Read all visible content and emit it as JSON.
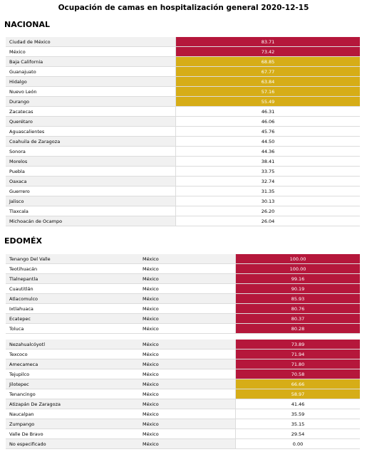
{
  "title": "Ocupación de camas en hospitalización general 2020-12-15",
  "nacional": {
    "heading": "NACIONAL",
    "rows": [
      {
        "name": "Ciudad de México",
        "value": "83.71",
        "color": "#b5173b"
      },
      {
        "name": "México",
        "value": "73.42",
        "color": "#b5173b"
      },
      {
        "name": "Baja California",
        "value": "68.85",
        "color": "#d6ad17"
      },
      {
        "name": "Guanajuato",
        "value": "67.77",
        "color": "#d6ad17"
      },
      {
        "name": "Hidalgo",
        "value": "63.84",
        "color": "#d6ad17"
      },
      {
        "name": "Nuevo León",
        "value": "57.16",
        "color": "#d6ad17"
      },
      {
        "name": "Durango",
        "value": "55.49",
        "color": "#d6ad17"
      },
      {
        "name": "Zacatecas",
        "value": "46.31"
      },
      {
        "name": "Querétaro",
        "value": "46.06"
      },
      {
        "name": "Aguascalientes",
        "value": "45.76"
      },
      {
        "name": "Coahuila de Zaragoza",
        "value": "44.50"
      },
      {
        "name": "Sonora",
        "value": "44.36"
      },
      {
        "name": "Morelos",
        "value": "38.41"
      },
      {
        "name": "Puebla",
        "value": "33.75"
      },
      {
        "name": "Oaxaca",
        "value": "32.74"
      },
      {
        "name": "Guerrero",
        "value": "31.35"
      },
      {
        "name": "Jalisco",
        "value": "30.13"
      },
      {
        "name": "Tlaxcala",
        "value": "26.20"
      },
      {
        "name": "Michoacán de Ocampo",
        "value": "26.04"
      }
    ]
  },
  "edomex": {
    "heading": "EDOMÉX",
    "tables": [
      [
        {
          "name": "Tenango Del Valle",
          "state": "México",
          "value": "100.00",
          "color": "#b5173b"
        },
        {
          "name": "Teotihuacán",
          "state": "México",
          "value": "100.00",
          "color": "#b5173b"
        },
        {
          "name": "Tlalnepantla",
          "state": "México",
          "value": "99.16",
          "color": "#b5173b"
        },
        {
          "name": "Cuautitlán",
          "state": "México",
          "value": "90.19",
          "color": "#b5173b"
        },
        {
          "name": "Atlacomulco",
          "state": "México",
          "value": "85.93",
          "color": "#b5173b"
        },
        {
          "name": "Ixtlahuaca",
          "state": "México",
          "value": "80.76",
          "color": "#b5173b"
        },
        {
          "name": "Ecatepec",
          "state": "México",
          "value": "80.37",
          "color": "#b5173b"
        },
        {
          "name": "Toluca",
          "state": "México",
          "value": "80.28",
          "color": "#b5173b"
        }
      ],
      [
        {
          "name": "Nezahualcóyotl",
          "state": "México",
          "value": "73.89",
          "color": "#b5173b"
        },
        {
          "name": "Texcoco",
          "state": "México",
          "value": "71.94",
          "color": "#b5173b"
        },
        {
          "name": "Amecameca",
          "state": "México",
          "value": "71.80",
          "color": "#b5173b"
        },
        {
          "name": "Tejupilco",
          "state": "México",
          "value": "70.58",
          "color": "#b5173b"
        },
        {
          "name": "Jilotepec",
          "state": "México",
          "value": "66.66",
          "color": "#d6ad17"
        },
        {
          "name": "Tenancingo",
          "state": "México",
          "value": "58.97",
          "color": "#d6ad17"
        },
        {
          "name": "Atizapán De Zaragoza",
          "state": "México",
          "value": "41.46"
        },
        {
          "name": "Naucalpan",
          "state": "México",
          "value": "35.59"
        },
        {
          "name": "Zumpango",
          "state": "México",
          "value": "35.15"
        },
        {
          "name": "Valle De Bravo",
          "state": "México",
          "value": "29.54"
        },
        {
          "name": "No especificado",
          "state": "México",
          "value": "0.00"
        }
      ]
    ]
  }
}
